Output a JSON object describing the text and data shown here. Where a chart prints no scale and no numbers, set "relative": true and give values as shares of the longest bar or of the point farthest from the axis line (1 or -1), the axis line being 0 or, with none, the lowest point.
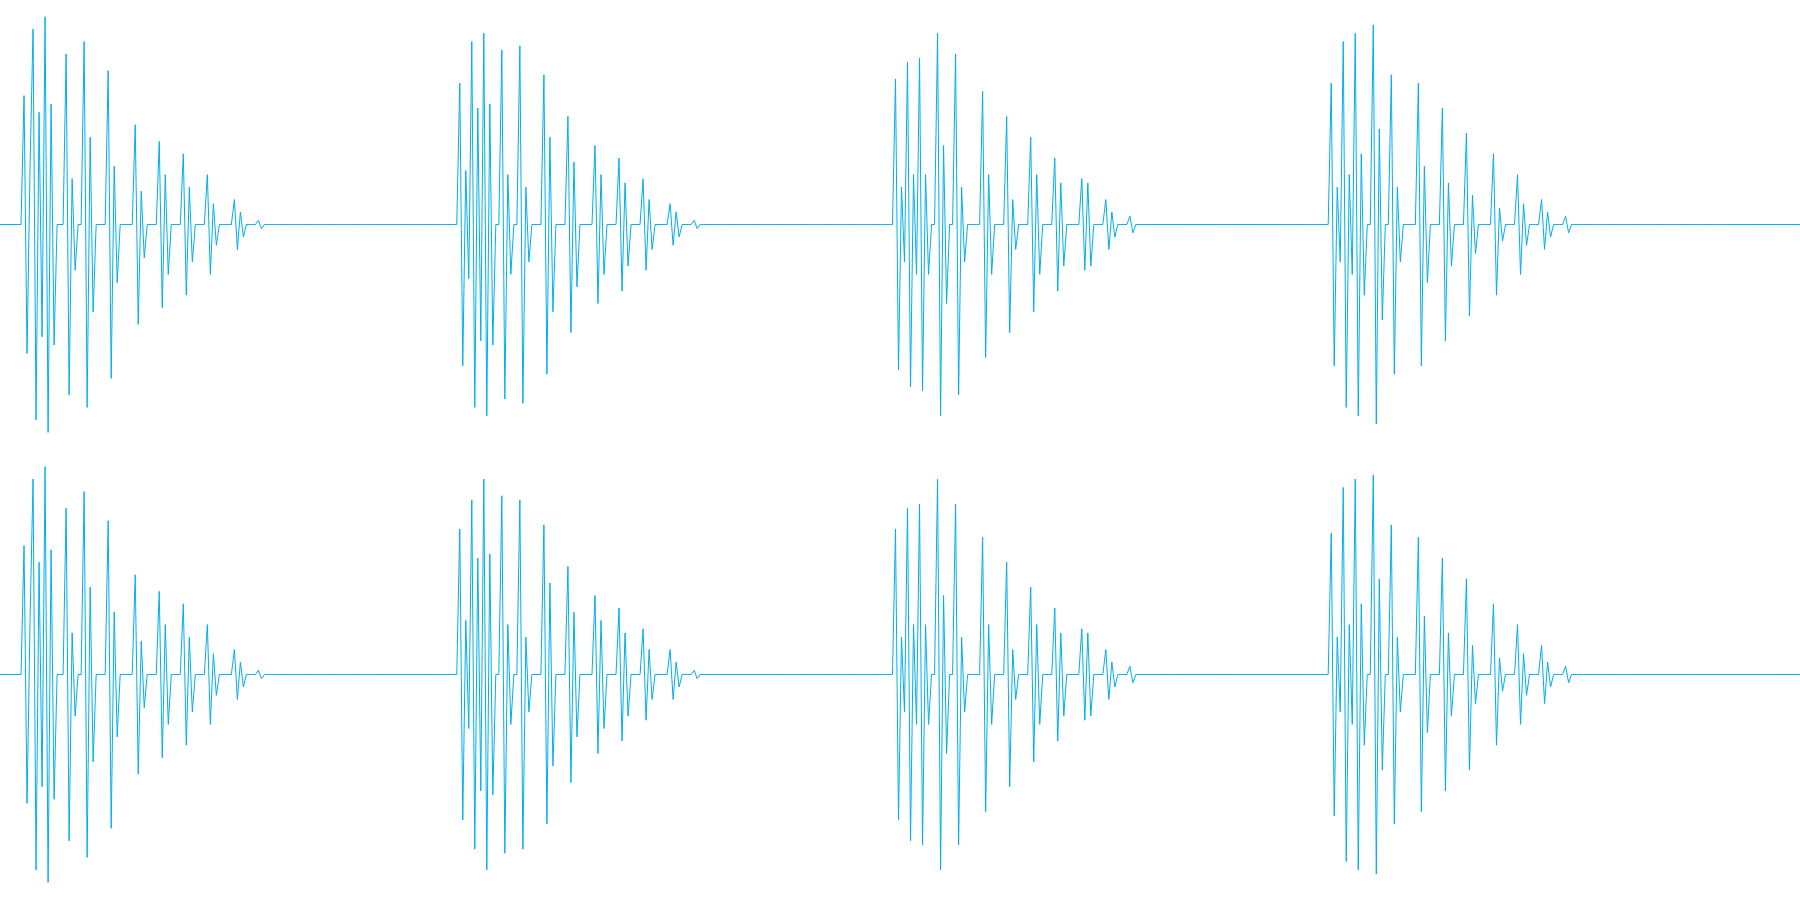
{
  "chart_data": [
    {
      "type": "line",
      "relative": true,
      "categories": [
        null,
        null,
        null,
        null,
        null,
        null,
        null,
        null,
        null,
        null,
        null,
        null,
        null,
        null,
        null,
        null,
        null,
        null,
        null,
        null,
        null,
        null,
        null,
        null,
        null,
        null,
        null,
        null,
        null,
        null,
        null,
        null,
        null,
        null,
        null,
        null,
        null,
        null,
        null,
        null,
        null,
        null,
        null,
        null,
        null,
        null,
        null,
        null,
        null,
        null,
        null,
        null,
        null,
        null,
        null,
        null,
        null,
        null,
        null,
        null,
        null,
        null,
        null,
        null,
        null,
        null,
        null,
        null,
        null,
        null,
        null,
        null,
        null,
        null,
        null,
        null,
        null,
        null,
        null,
        null,
        null,
        null,
        null,
        null,
        null,
        null,
        null,
        null,
        null,
        null,
        null,
        null,
        null,
        null,
        null,
        null,
        null,
        null,
        null,
        null,
        null,
        null,
        null,
        null,
        null,
        null,
        null,
        null,
        null,
        null,
        null,
        null,
        null,
        null,
        null,
        null,
        null,
        null,
        null,
        null,
        null,
        null,
        null,
        null,
        null,
        null,
        null,
        null,
        null,
        null,
        null,
        null,
        null,
        null,
        null,
        null,
        null,
        null,
        null,
        null,
        null,
        null,
        null,
        null,
        null,
        null,
        null,
        null,
        null,
        null,
        null,
        null,
        null,
        null,
        null,
        null,
        null,
        null,
        null,
        null,
        null,
        null,
        null,
        null,
        null,
        null,
        null,
        null,
        null,
        null,
        null,
        null,
        null,
        null,
        null,
        null,
        null,
        null,
        null,
        null,
        null,
        null,
        null,
        null,
        null,
        null,
        null,
        null,
        null,
        null,
        null,
        null,
        null,
        null,
        null,
        null,
        null,
        null,
        null,
        null,
        null,
        null,
        null,
        null,
        null,
        null,
        null,
        null,
        null,
        null,
        null,
        null,
        null,
        null,
        null,
        null,
        null,
        null,
        null,
        null,
        null,
        null,
        null,
        null,
        null,
        null,
        null,
        null,
        null,
        null,
        null,
        null,
        null,
        null,
        null,
        null,
        null,
        null,
        null,
        null,
        null,
        null,
        null,
        null,
        null,
        null,
        null,
        null,
        null,
        null,
        null,
        null,
        null,
        null,
        null,
        null,
        null,
        null,
        null,
        null,
        null,
        null,
        null,
        null,
        null,
        null,
        null,
        null,
        null,
        null,
        null,
        null,
        null,
        null,
        null,
        null,
        null,
        null,
        null,
        null,
        null,
        null,
        null,
        null,
        null,
        null,
        null,
        null,
        null,
        null,
        null,
        null,
        null,
        null,
        null,
        null,
        null,
        null,
        null,
        null,
        null,
        null,
        null,
        null,
        null,
        null,
        null,
        null,
        null,
        null,
        null,
        null,
        null,
        null,
        null,
        null,
        null,
        null,
        null,
        null,
        null,
        null,
        null,
        null,
        null,
        null,
        null,
        null,
        null,
        null,
        null,
        null,
        null,
        null,
        null,
        null,
        null,
        null,
        null,
        null,
        null,
        null,
        null,
        null,
        null,
        null,
        null,
        null,
        null,
        null,
        null,
        null,
        null,
        null,
        null,
        null,
        null,
        null,
        null,
        null,
        null,
        null,
        null,
        null,
        null,
        null,
        null,
        null,
        null,
        null,
        null,
        null,
        null,
        null,
        null,
        null,
        null,
        null,
        null,
        null,
        null,
        null,
        null,
        null,
        null,
        null,
        null,
        null,
        null,
        null,
        null,
        null,
        null,
        null,
        null,
        null,
        null,
        null,
        null,
        null,
        null,
        null,
        null,
        null,
        null,
        null,
        null,
        null,
        null,
        null,
        null,
        null,
        null,
        null,
        null,
        null,
        null,
        null,
        null,
        null,
        null,
        null,
        null,
        null,
        null,
        null,
        null,
        null,
        null,
        null,
        null,
        null,
        null,
        null,
        null,
        null,
        null,
        null,
        null,
        null,
        null,
        null,
        null,
        null,
        null,
        null,
        null,
        null,
        null,
        null,
        null,
        null,
        null,
        null,
        null,
        null,
        null,
        null,
        null,
        null,
        null,
        null,
        null,
        null,
        null,
        null,
        null,
        null,
        null,
        null,
        null,
        null,
        null,
        null,
        null,
        null,
        null,
        null,
        null,
        null,
        null,
        null,
        null,
        null,
        null,
        null,
        null,
        null,
        null,
        null,
        null,
        null,
        null,
        null,
        null,
        null,
        null,
        null,
        null,
        null,
        null,
        null,
        null,
        null,
        null,
        null,
        null,
        null,
        null,
        null,
        null,
        null,
        null,
        null,
        null,
        null,
        null,
        null,
        null,
        null,
        null,
        null,
        null,
        null,
        null,
        null,
        null,
        null,
        null,
        null,
        null,
        null,
        null,
        null,
        null,
        null,
        null,
        null,
        null,
        null,
        null,
        null,
        null,
        null,
        null,
        null,
        null,
        null,
        null,
        null,
        null,
        null,
        null,
        null,
        null,
        null,
        null,
        null,
        null,
        null,
        null,
        null,
        null,
        null,
        null,
        null,
        null,
        null,
        null,
        null,
        null,
        null,
        null,
        null,
        null,
        null,
        null,
        null,
        null,
        null,
        null,
        null,
        null,
        null,
        null,
        null,
        null,
        null,
        null,
        null,
        null,
        null,
        null,
        null,
        null,
        null,
        null,
        null,
        null,
        null
      ],
      "series": [
        {
          "color": "#00aeef",
          "values": [
            0.5,
            0.5,
            0.5,
            0.5,
            0.5,
            0.5,
            0.5,
            0.5,
            0.81,
            0.19,
            0.64,
            0.97,
            0.03,
            0.77,
            0.23,
            1,
            0,
            0.79,
            0.21,
            0.5,
            0.5,
            0.5,
            0.91,
            0.09,
            0.61,
            0.39,
            0.5,
            0.5,
            0.94,
            0.06,
            0.71,
            0.29,
            0.5,
            0.5,
            0.5,
            0.5,
            0.87,
            0.13,
            0.64,
            0.36,
            0.5,
            0.5,
            0.5,
            0.5,
            0.5,
            0.74,
            0.26,
            0.58,
            0.42,
            0.5,
            0.5,
            0.5,
            0.5,
            0.7,
            0.3,
            0.62,
            0.38,
            0.5,
            0.5,
            0.5,
            0.5,
            0.67,
            0.33,
            0.59,
            0.41,
            0.5,
            0.5,
            0.5,
            0.5,
            0.62,
            0.38,
            0.55,
            0.45,
            0.5,
            0.5,
            0.5,
            0.5,
            0.5,
            0.56,
            0.44,
            0.53,
            0.47,
            0.5,
            0.5,
            0.5,
            0.5,
            0.51,
            0.49,
            0.5,
            0.5,
            0.5,
            0.5,
            0.5,
            0.5,
            0.5,
            0.5,
            0.5,
            0.5,
            0.5,
            0.5,
            0.5,
            0.5,
            0.5,
            0.5,
            0.5,
            0.5,
            0.5,
            0.5,
            0.5,
            0.5,
            0.5,
            0.5,
            0.5,
            0.5,
            0.5,
            0.5,
            0.5,
            0.5,
            0.5,
            0.5,
            0.5,
            0.5,
            0.5,
            0.5,
            0.5,
            0.5,
            0.5,
            0.5,
            0.5,
            0.5,
            0.5,
            0.5,
            0.5,
            0.5,
            0.5,
            0.5,
            0.5,
            0.5,
            0.5,
            0.5,
            0.5,
            0.5,
            0.5,
            0.5,
            0.5,
            0.5,
            0.5,
            0.5,
            0.5,
            0.5,
            0.5,
            0.5,
            0.5,
            0.84,
            0.16,
            0.63,
            0.37,
            0.94,
            0.06,
            0.78,
            0.22,
            0.96,
            0.04,
            0.79,
            0.21,
            0.5,
            0.5,
            0.92,
            0.08,
            0.62,
            0.38,
            0.5,
            0.5,
            0.93,
            0.07,
            0.59,
            0.41,
            0.5,
            0.5,
            0.5,
            0.5,
            0.86,
            0.14,
            0.71,
            0.29,
            0.5,
            0.5,
            0.5,
            0.5,
            0.76,
            0.24,
            0.65,
            0.35,
            0.5,
            0.5,
            0.5,
            0.5,
            0.5,
            0.69,
            0.31,
            0.62,
            0.38,
            0.5,
            0.5,
            0.5,
            0.5,
            0.66,
            0.34,
            0.6,
            0.4,
            0.5,
            0.5,
            0.5,
            0.5,
            0.61,
            0.39,
            0.56,
            0.44,
            0.5,
            0.5,
            0.5,
            0.5,
            0.5,
            0.55,
            0.45,
            0.53,
            0.47,
            0.5,
            0.5,
            0.5,
            0.5,
            0.51,
            0.49,
            0.5,
            0.5,
            0.5,
            0.5,
            0.5,
            0.5,
            0.5,
            0.5,
            0.5,
            0.5,
            0.5,
            0.5,
            0.5,
            0.5,
            0.5,
            0.5,
            0.5,
            0.5,
            0.5,
            0.5,
            0.5,
            0.5,
            0.5,
            0.5,
            0.5,
            0.5,
            0.5,
            0.5,
            0.5,
            0.5,
            0.5,
            0.5,
            0.5,
            0.5,
            0.5,
            0.5,
            0.5,
            0.5,
            0.5,
            0.5,
            0.5,
            0.5,
            0.5,
            0.5,
            0.5,
            0.5,
            0.5,
            0.5,
            0.5,
            0.5,
            0.5,
            0.5,
            0.5,
            0.5,
            0.5,
            0.5,
            0.5,
            0.5,
            0.5,
            0.5,
            0.5,
            0.5,
            0.5,
            0.5,
            0.5,
            0.85,
            0.15,
            0.59,
            0.41,
            0.89,
            0.11,
            0.62,
            0.38,
            0.9,
            0.1,
            0.62,
            0.38,
            0.5,
            0.5,
            0.96,
            0.04,
            0.69,
            0.31,
            0.5,
            0.5,
            0.91,
            0.09,
            0.59,
            0.41,
            0.5,
            0.5,
            0.5,
            0.5,
            0.5,
            0.82,
            0.18,
            0.62,
            0.38,
            0.5,
            0.5,
            0.5,
            0.5,
            0.76,
            0.24,
            0.56,
            0.44,
            0.5,
            0.5,
            0.5,
            0.5,
            0.71,
            0.29,
            0.62,
            0.38,
            0.5,
            0.5,
            0.5,
            0.5,
            0.66,
            0.34,
            0.6,
            0.4,
            0.5,
            0.5,
            0.5,
            0.5,
            0.5,
            0.61,
            0.39,
            0.6,
            0.4,
            0.5,
            0.5,
            0.5,
            0.5,
            0.56,
            0.44,
            0.53,
            0.47,
            0.5,
            0.5,
            0.5,
            0.5,
            0.52,
            0.48,
            0.5,
            0.5,
            0.5,
            0.5,
            0.5,
            0.5,
            0.5,
            0.5,
            0.5,
            0.5,
            0.5,
            0.5,
            0.5,
            0.5,
            0.5,
            0.5,
            0.5,
            0.5,
            0.5,
            0.5,
            0.5,
            0.5,
            0.5,
            0.5,
            0.5,
            0.5,
            0.5,
            0.5,
            0.5,
            0.5,
            0.5,
            0.5,
            0.5,
            0.5,
            0.5,
            0.5,
            0.5,
            0.5,
            0.5,
            0.5,
            0.5,
            0.5,
            0.5,
            0.5,
            0.5,
            0.5,
            0.5,
            0.5,
            0.5,
            0.5,
            0.5,
            0.5,
            0.5,
            0.5,
            0.5,
            0.5,
            0.5,
            0.5,
            0.5,
            0.5,
            0.5,
            0.5,
            0.5,
            0.5,
            0.5,
            0.84,
            0.16,
            0.59,
            0.41,
            0.94,
            0.06,
            0.62,
            0.38,
            0.96,
            0.04,
            0.67,
            0.33,
            0.5,
            0.5,
            0.98,
            0.02,
            0.73,
            0.27,
            0.5,
            0.5,
            0.86,
            0.14,
            0.59,
            0.41,
            0.5,
            0.5,
            0.5,
            0.5,
            0.5,
            0.84,
            0.16,
            0.64,
            0.36,
            0.5,
            0.5,
            0.5,
            0.5,
            0.78,
            0.22,
            0.6,
            0.4,
            0.5,
            0.5,
            0.5,
            0.5,
            0.72,
            0.28,
            0.57,
            0.43,
            0.5,
            0.5,
            0.5,
            0.5,
            0.5,
            0.67,
            0.33,
            0.54,
            0.46,
            0.5,
            0.5,
            0.5,
            0.5,
            0.62,
            0.38,
            0.55,
            0.45,
            0.5,
            0.5,
            0.5,
            0.5,
            0.56,
            0.44,
            0.53,
            0.47,
            0.5,
            0.5,
            0.5,
            0.5,
            0.52,
            0.48,
            0.5,
            0.5,
            0.5,
            0.5,
            0.5,
            0.5,
            0.5,
            0.5,
            0.5,
            0.5,
            0.5,
            0.5,
            0.5,
            0.5,
            0.5,
            0.5,
            0.5,
            0.5,
            0.5,
            0.5,
            0.5,
            0.5,
            0.5,
            0.5,
            0.5,
            0.5,
            0.5,
            0.5,
            0.5,
            0.5,
            0.5,
            0.5,
            0.5,
            0.5,
            0.5,
            0.5,
            0.5,
            0.5,
            0.5,
            0.5,
            0.5,
            0.5,
            0.5,
            0.5,
            0.5,
            0.5,
            0.5,
            0.5,
            0.5,
            0.5,
            0.5,
            0.5,
            0.5,
            0.5,
            0.5,
            0.5,
            0.5,
            0.5,
            0.5,
            0.5,
            0.5,
            0.5,
            0.5,
            0.5,
            0.5,
            0.5,
            0.5,
            0.5,
            0.5,
            0.5,
            0.5,
            0.5,
            0.5,
            0.5,
            0.5,
            0.5,
            0.5
          ]
        }
      ]
    },
    {
      "type": "line",
      "relative": true,
      "categories": [
        null,
        null,
        null,
        null,
        null,
        null,
        null,
        null,
        null,
        null,
        null,
        null,
        null,
        null,
        null,
        null,
        null,
        null,
        null,
        null,
        null,
        null,
        null,
        null,
        null,
        null,
        null,
        null,
        null,
        null,
        null,
        null,
        null,
        null,
        null,
        null,
        null,
        null,
        null,
        null,
        null,
        null,
        null,
        null,
        null,
        null,
        null,
        null,
        null,
        null,
        null,
        null,
        null,
        null,
        null,
        null,
        null,
        null,
        null,
        null,
        null,
        null,
        null,
        null,
        null,
        null,
        null,
        null,
        null,
        null,
        null,
        null,
        null,
        null,
        null,
        null,
        null,
        null,
        null,
        null,
        null,
        null,
        null,
        null,
        null,
        null,
        null,
        null,
        null,
        null,
        null,
        null,
        null,
        null,
        null,
        null,
        null,
        null,
        null,
        null,
        null,
        null,
        null,
        null,
        null,
        null,
        null,
        null,
        null,
        null,
        null,
        null,
        null,
        null,
        null,
        null,
        null,
        null,
        null,
        null,
        null,
        null,
        null,
        null,
        null,
        null,
        null,
        null,
        null,
        null,
        null,
        null,
        null,
        null,
        null,
        null,
        null,
        null,
        null,
        null,
        null,
        null,
        null,
        null,
        null,
        null,
        null,
        null,
        null,
        null,
        null,
        null,
        null,
        null,
        null,
        null,
        null,
        null,
        null,
        null,
        null,
        null,
        null,
        null,
        null,
        null,
        null,
        null,
        null,
        null,
        null,
        null,
        null,
        null,
        null,
        null,
        null,
        null,
        null,
        null,
        null,
        null,
        null,
        null,
        null,
        null,
        null,
        null,
        null,
        null,
        null,
        null,
        null,
        null,
        null,
        null,
        null,
        null,
        null,
        null,
        null,
        null,
        null,
        null,
        null,
        null,
        null,
        null,
        null,
        null,
        null,
        null,
        null,
        null,
        null,
        null,
        null,
        null,
        null,
        null,
        null,
        null,
        null,
        null,
        null,
        null,
        null,
        null,
        null,
        null,
        null,
        null,
        null,
        null,
        null,
        null,
        null,
        null,
        null,
        null,
        null,
        null,
        null,
        null,
        null,
        null,
        null,
        null,
        null,
        null,
        null,
        null,
        null,
        null,
        null,
        null,
        null,
        null,
        null,
        null,
        null,
        null,
        null,
        null,
        null,
        null,
        null,
        null,
        null,
        null,
        null,
        null,
        null,
        null,
        null,
        null,
        null,
        null,
        null,
        null,
        null,
        null,
        null,
        null,
        null,
        null,
        null,
        null,
        null,
        null,
        null,
        null,
        null,
        null,
        null,
        null,
        null,
        null,
        null,
        null,
        null,
        null,
        null,
        null,
        null,
        null,
        null,
        null,
        null,
        null,
        null,
        null,
        null,
        null,
        null,
        null,
        null,
        null,
        null,
        null,
        null,
        null,
        null,
        null,
        null,
        null,
        null,
        null,
        null,
        null,
        null,
        null,
        null,
        null,
        null,
        null,
        null,
        null,
        null,
        null,
        null,
        null,
        null,
        null,
        null,
        null,
        null,
        null,
        null,
        null,
        null,
        null,
        null,
        null,
        null,
        null,
        null,
        null,
        null,
        null,
        null,
        null,
        null,
        null,
        null,
        null,
        null,
        null,
        null,
        null,
        null,
        null,
        null,
        null,
        null,
        null,
        null,
        null,
        null,
        null,
        null,
        null,
        null,
        null,
        null,
        null,
        null,
        null,
        null,
        null,
        null,
        null,
        null,
        null,
        null,
        null,
        null,
        null,
        null,
        null,
        null,
        null,
        null,
        null,
        null,
        null,
        null,
        null,
        null,
        null,
        null,
        null,
        null,
        null,
        null,
        null,
        null,
        null,
        null,
        null,
        null,
        null,
        null,
        null,
        null,
        null,
        null,
        null,
        null,
        null,
        null,
        null,
        null,
        null,
        null,
        null,
        null,
        null,
        null,
        null,
        null,
        null,
        null,
        null,
        null,
        null,
        null,
        null,
        null,
        null,
        null,
        null,
        null,
        null,
        null,
        null,
        null,
        null,
        null,
        null,
        null,
        null,
        null,
        null,
        null,
        null,
        null,
        null,
        null,
        null,
        null,
        null,
        null,
        null,
        null,
        null,
        null,
        null,
        null,
        null,
        null,
        null,
        null,
        null,
        null,
        null,
        null,
        null,
        null,
        null,
        null,
        null,
        null,
        null,
        null,
        null,
        null,
        null,
        null,
        null,
        null,
        null,
        null,
        null,
        null,
        null,
        null,
        null,
        null,
        null,
        null,
        null,
        null,
        null,
        null,
        null,
        null,
        null,
        null,
        null,
        null,
        null,
        null,
        null,
        null,
        null,
        null,
        null,
        null,
        null,
        null,
        null,
        null,
        null,
        null,
        null,
        null,
        null,
        null,
        null,
        null,
        null,
        null,
        null,
        null,
        null,
        null,
        null,
        null,
        null,
        null,
        null,
        null,
        null,
        null,
        null,
        null,
        null,
        null,
        null,
        null,
        null,
        null,
        null,
        null,
        null,
        null,
        null,
        null,
        null,
        null,
        null,
        null,
        null,
        null,
        null,
        null,
        null,
        null,
        null,
        null,
        null,
        null,
        null,
        null,
        null,
        null,
        null,
        null,
        null,
        null,
        null,
        null,
        null,
        null,
        null,
        null,
        null,
        null,
        null
      ],
      "series": [
        {
          "color": "#00aeef",
          "values": [
            0.5,
            0.5,
            0.5,
            0.5,
            0.5,
            0.5,
            0.5,
            0.5,
            0.81,
            0.19,
            0.63,
            0.97,
            0.03,
            0.77,
            0.23,
            1,
            0,
            0.8,
            0.2,
            0.5,
            0.5,
            0.5,
            0.9,
            0.1,
            0.6,
            0.4,
            0.5,
            0.5,
            0.94,
            0.06,
            0.71,
            0.29,
            0.5,
            0.5,
            0.5,
            0.5,
            0.87,
            0.13,
            0.65,
            0.35,
            0.5,
            0.5,
            0.5,
            0.5,
            0.5,
            0.74,
            0.26,
            0.58,
            0.42,
            0.5,
            0.5,
            0.5,
            0.5,
            0.7,
            0.3,
            0.62,
            0.38,
            0.5,
            0.5,
            0.5,
            0.5,
            0.67,
            0.33,
            0.59,
            0.41,
            0.5,
            0.5,
            0.5,
            0.5,
            0.62,
            0.38,
            0.55,
            0.45,
            0.5,
            0.5,
            0.5,
            0.5,
            0.5,
            0.56,
            0.44,
            0.53,
            0.47,
            0.5,
            0.5,
            0.5,
            0.5,
            0.51,
            0.49,
            0.5,
            0.5,
            0.5,
            0.5,
            0.5,
            0.5,
            0.5,
            0.5,
            0.5,
            0.5,
            0.5,
            0.5,
            0.5,
            0.5,
            0.5,
            0.5,
            0.5,
            0.5,
            0.5,
            0.5,
            0.5,
            0.5,
            0.5,
            0.5,
            0.5,
            0.5,
            0.5,
            0.5,
            0.5,
            0.5,
            0.5,
            0.5,
            0.5,
            0.5,
            0.5,
            0.5,
            0.5,
            0.5,
            0.5,
            0.5,
            0.5,
            0.5,
            0.5,
            0.5,
            0.5,
            0.5,
            0.5,
            0.5,
            0.5,
            0.5,
            0.5,
            0.5,
            0.5,
            0.5,
            0.5,
            0.5,
            0.5,
            0.5,
            0.5,
            0.5,
            0.5,
            0.5,
            0.5,
            0.5,
            0.5,
            0.85,
            0.15,
            0.63,
            0.37,
            0.92,
            0.08,
            0.78,
            0.22,
            0.97,
            0.03,
            0.79,
            0.21,
            0.5,
            0.5,
            0.93,
            0.07,
            0.62,
            0.38,
            0.5,
            0.5,
            0.92,
            0.08,
            0.59,
            0.41,
            0.5,
            0.5,
            0.5,
            0.5,
            0.86,
            0.14,
            0.72,
            0.28,
            0.5,
            0.5,
            0.5,
            0.5,
            0.76,
            0.24,
            0.65,
            0.35,
            0.5,
            0.5,
            0.5,
            0.5,
            0.5,
            0.69,
            0.31,
            0.63,
            0.37,
            0.5,
            0.5,
            0.5,
            0.5,
            0.66,
            0.34,
            0.6,
            0.4,
            0.5,
            0.5,
            0.5,
            0.5,
            0.61,
            0.39,
            0.56,
            0.44,
            0.5,
            0.5,
            0.5,
            0.5,
            0.5,
            0.56,
            0.44,
            0.53,
            0.47,
            0.5,
            0.5,
            0.5,
            0.5,
            0.51,
            0.49,
            0.5,
            0.5,
            0.5,
            0.5,
            0.5,
            0.5,
            0.5,
            0.5,
            0.5,
            0.5,
            0.5,
            0.5,
            0.5,
            0.5,
            0.5,
            0.5,
            0.5,
            0.5,
            0.5,
            0.5,
            0.5,
            0.5,
            0.5,
            0.5,
            0.5,
            0.5,
            0.5,
            0.5,
            0.5,
            0.5,
            0.5,
            0.5,
            0.5,
            0.5,
            0.5,
            0.5,
            0.5,
            0.5,
            0.5,
            0.5,
            0.5,
            0.5,
            0.5,
            0.5,
            0.5,
            0.5,
            0.5,
            0.5,
            0.5,
            0.5,
            0.5,
            0.5,
            0.5,
            0.5,
            0.5,
            0.5,
            0.5,
            0.5,
            0.5,
            0.5,
            0.5,
            0.5,
            0.5,
            0.5,
            0.5,
            0.85,
            0.15,
            0.59,
            0.41,
            0.9,
            0.1,
            0.62,
            0.38,
            0.91,
            0.09,
            0.62,
            0.38,
            0.5,
            0.5,
            0.97,
            0.03,
            0.69,
            0.31,
            0.5,
            0.5,
            0.91,
            0.09,
            0.59,
            0.41,
            0.5,
            0.5,
            0.5,
            0.5,
            0.5,
            0.83,
            0.17,
            0.62,
            0.38,
            0.5,
            0.5,
            0.5,
            0.5,
            0.77,
            0.23,
            0.56,
            0.44,
            0.5,
            0.5,
            0.5,
            0.5,
            0.71,
            0.29,
            0.62,
            0.38,
            0.5,
            0.5,
            0.5,
            0.5,
            0.66,
            0.34,
            0.6,
            0.4,
            0.5,
            0.5,
            0.5,
            0.5,
            0.5,
            0.61,
            0.39,
            0.6,
            0.4,
            0.5,
            0.5,
            0.5,
            0.5,
            0.56,
            0.44,
            0.53,
            0.47,
            0.5,
            0.5,
            0.5,
            0.5,
            0.52,
            0.48,
            0.5,
            0.5,
            0.5,
            0.5,
            0.5,
            0.5,
            0.5,
            0.5,
            0.5,
            0.5,
            0.5,
            0.5,
            0.5,
            0.5,
            0.5,
            0.5,
            0.5,
            0.5,
            0.5,
            0.5,
            0.5,
            0.5,
            0.5,
            0.5,
            0.5,
            0.5,
            0.5,
            0.5,
            0.5,
            0.5,
            0.5,
            0.5,
            0.5,
            0.5,
            0.5,
            0.5,
            0.5,
            0.5,
            0.5,
            0.5,
            0.5,
            0.5,
            0.5,
            0.5,
            0.5,
            0.5,
            0.5,
            0.5,
            0.5,
            0.5,
            0.5,
            0.5,
            0.5,
            0.5,
            0.5,
            0.5,
            0.5,
            0.5,
            0.5,
            0.5,
            0.5,
            0.5,
            0.5,
            0.5,
            0.5,
            0.84,
            0.16,
            0.59,
            0.41,
            0.95,
            0.05,
            0.62,
            0.38,
            0.97,
            0.03,
            0.67,
            0.33,
            0.5,
            0.5,
            0.98,
            0.02,
            0.73,
            0.27,
            0.5,
            0.5,
            0.86,
            0.14,
            0.59,
            0.41,
            0.5,
            0.5,
            0.5,
            0.5,
            0.5,
            0.83,
            0.17,
            0.64,
            0.36,
            0.5,
            0.5,
            0.5,
            0.5,
            0.78,
            0.22,
            0.6,
            0.4,
            0.5,
            0.5,
            0.5,
            0.5,
            0.73,
            0.27,
            0.57,
            0.43,
            0.5,
            0.5,
            0.5,
            0.5,
            0.5,
            0.67,
            0.33,
            0.54,
            0.46,
            0.5,
            0.5,
            0.5,
            0.5,
            0.62,
            0.38,
            0.55,
            0.45,
            0.5,
            0.5,
            0.5,
            0.5,
            0.57,
            0.43,
            0.53,
            0.47,
            0.5,
            0.5,
            0.5,
            0.5,
            0.52,
            0.48,
            0.5,
            0.5,
            0.5,
            0.5,
            0.5,
            0.5,
            0.5,
            0.5,
            0.5,
            0.5,
            0.5,
            0.5,
            0.5,
            0.5,
            0.5,
            0.5,
            0.5,
            0.5,
            0.5,
            0.5,
            0.5,
            0.5,
            0.5,
            0.5,
            0.5,
            0.5,
            0.5,
            0.5,
            0.5,
            0.5,
            0.5,
            0.5,
            0.5,
            0.5,
            0.5,
            0.5,
            0.5,
            0.5,
            0.5,
            0.5,
            0.5,
            0.5,
            0.5,
            0.5,
            0.5,
            0.5,
            0.5,
            0.5,
            0.5,
            0.5,
            0.5,
            0.5,
            0.5,
            0.5,
            0.5,
            0.5,
            0.5,
            0.5,
            0.5,
            0.5,
            0.5,
            0.5,
            0.5,
            0.5,
            0.5,
            0.5,
            0.5,
            0.5,
            0.5,
            0.5,
            0.5,
            0.5,
            0.5,
            0.5,
            0.5,
            0.5,
            0.5
          ]
        }
      ]
    }
  ]
}
